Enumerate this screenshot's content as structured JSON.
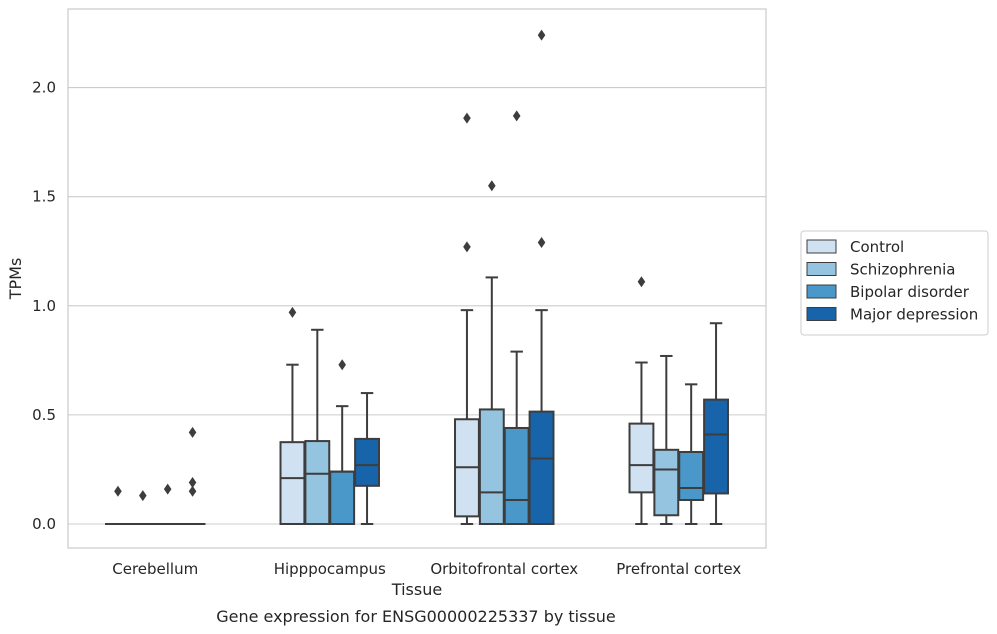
{
  "caption": "Gene expression for ENSG00000225337 by tissue",
  "chart_data": {
    "type": "box",
    "xlabel": "Tissue",
    "ylabel": "TPMs",
    "ylim": [
      -0.11,
      2.36
    ],
    "yticks": [
      0.0,
      0.5,
      1.0,
      1.5,
      2.0
    ],
    "ytick_labels": [
      "0.0",
      "0.5",
      "1.0",
      "1.5",
      "2.0"
    ],
    "grid": "horizontal",
    "legend_position": "right",
    "categories": [
      "Cerebellum",
      "Hipppocampus",
      "Orbitofrontal cortex",
      "Prefrontal cortex"
    ],
    "series": [
      {
        "name": "Control",
        "color": "#d0e1f2",
        "boxes": [
          {
            "whislo": 0,
            "q1": 0,
            "med": 0,
            "q3": 0,
            "whishi": 0,
            "fliers": [
              0.15
            ]
          },
          {
            "whislo": 0,
            "q1": 0,
            "med": 0.21,
            "q3": 0.375,
            "whishi": 0.73,
            "fliers": [
              0.97
            ]
          },
          {
            "whislo": 0,
            "q1": 0.035,
            "med": 0.26,
            "q3": 0.48,
            "whishi": 0.98,
            "fliers": [
              1.27,
              1.86
            ]
          },
          {
            "whislo": 0,
            "q1": 0.145,
            "med": 0.27,
            "q3": 0.46,
            "whishi": 0.74,
            "fliers": [
              1.11
            ]
          }
        ]
      },
      {
        "name": "Schizophrenia",
        "color": "#94c4df",
        "boxes": [
          {
            "whislo": 0,
            "q1": 0,
            "med": 0,
            "q3": 0,
            "whishi": 0,
            "fliers": [
              0.13
            ]
          },
          {
            "whislo": 0,
            "q1": 0,
            "med": 0.23,
            "q3": 0.38,
            "whishi": 0.89,
            "fliers": []
          },
          {
            "whislo": 0,
            "q1": 0,
            "med": 0.145,
            "q3": 0.525,
            "whishi": 1.13,
            "fliers": [
              1.55
            ]
          },
          {
            "whislo": 0,
            "q1": 0.04,
            "med": 0.25,
            "q3": 0.34,
            "whishi": 0.77,
            "fliers": []
          }
        ]
      },
      {
        "name": "Bipolar disorder",
        "color": "#4a98c9",
        "boxes": [
          {
            "whislo": 0,
            "q1": 0,
            "med": 0,
            "q3": 0,
            "whishi": 0,
            "fliers": [
              0.16
            ]
          },
          {
            "whislo": 0,
            "q1": 0,
            "med": 0.24,
            "q3": 0.24,
            "whishi": 0.54,
            "fliers": [
              0.73
            ]
          },
          {
            "whislo": 0,
            "q1": 0,
            "med": 0.11,
            "q3": 0.44,
            "whishi": 0.79,
            "fliers": [
              1.87
            ]
          },
          {
            "whislo": 0,
            "q1": 0.11,
            "med": 0.165,
            "q3": 0.33,
            "whishi": 0.64,
            "fliers": []
          }
        ]
      },
      {
        "name": "Major depression",
        "color": "#1764ab",
        "boxes": [
          {
            "whislo": 0,
            "q1": 0,
            "med": 0,
            "q3": 0,
            "whishi": 0,
            "fliers": [
              0.15,
              0.19,
              0.42
            ]
          },
          {
            "whislo": 0,
            "q1": 0.175,
            "med": 0.27,
            "q3": 0.39,
            "whishi": 0.6,
            "fliers": []
          },
          {
            "whislo": 0,
            "q1": 0,
            "med": 0.3,
            "q3": 0.515,
            "whishi": 0.98,
            "fliers": [
              1.29,
              2.24
            ]
          },
          {
            "whislo": 0,
            "q1": 0.14,
            "med": 0.41,
            "q3": 0.57,
            "whishi": 0.92,
            "fliers": []
          }
        ]
      }
    ]
  }
}
